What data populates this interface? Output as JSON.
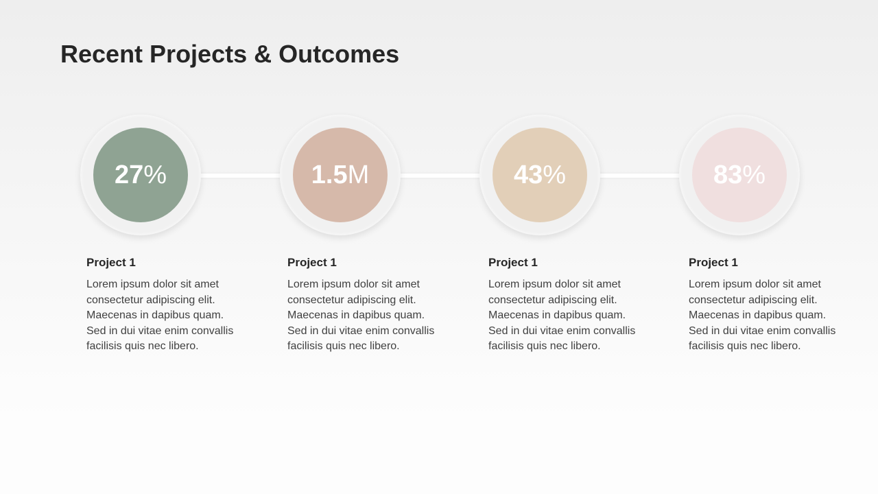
{
  "header": {
    "title": "Recent Projects & Outcomes"
  },
  "items": [
    {
      "number": "27",
      "unit": "%",
      "color": "#8fa393",
      "heading": "Project 1",
      "text": "Lorem ipsum dolor sit amet consectetur adipiscing elit. Maecenas in dapibus quam. Sed in dui vitae enim convallis facilisis quis nec libero."
    },
    {
      "number": "1.5",
      "unit": "M",
      "color": "#d6b9aa",
      "heading": "Project 1",
      "text": "Lorem ipsum dolor sit amet consectetur adipiscing elit. Maecenas in dapibus quam. Sed in dui vitae enim convallis facilisis quis nec libero."
    },
    {
      "number": "43",
      "unit": "%",
      "color": "#e2cfb8",
      "heading": "Project 1",
      "text": "Lorem ipsum dolor sit amet consectetur adipiscing elit. Maecenas in dapibus quam. Sed in dui vitae enim convallis facilisis quis nec libero."
    },
    {
      "number": "83",
      "unit": "%",
      "color": "#f0dfdf",
      "heading": "Project 1",
      "text": "Lorem ipsum dolor sit amet consectetur adipiscing elit. Maecenas in dapibus quam. Sed in dui vitae enim convallis facilisis quis nec libero."
    }
  ]
}
